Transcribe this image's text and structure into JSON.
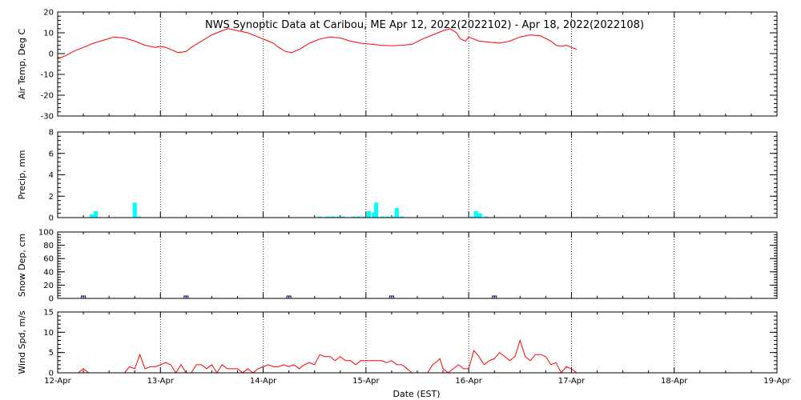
{
  "chart_data": {
    "type": "multi-panel",
    "title": "NWS Synoptic Data at Caribou, ME   Apr 12, 2022(2022102) - Apr 18, 2022(2022108)",
    "xlabel": "Date (EST)",
    "x_ticks": [
      "12-Apr",
      "13-Apr",
      "14-Apr",
      "15-Apr",
      "16-Apr",
      "17-Apr",
      "18-Apr",
      "19-Apr"
    ],
    "x_range_days": [
      0,
      7
    ],
    "grid": "vertical dotted at each day",
    "panels": [
      {
        "id": "temp",
        "type": "line",
        "ylabel": "Air Temp, Deg C",
        "ylim": [
          -30,
          20
        ],
        "yticks": [
          -30,
          -20,
          -10,
          0,
          10,
          20
        ],
        "color": "#ff0000",
        "points": [
          [
            0.0,
            -2.5
          ],
          [
            0.08,
            -1
          ],
          [
            0.15,
            1
          ],
          [
            0.25,
            3
          ],
          [
            0.35,
            5
          ],
          [
            0.45,
            6.5
          ],
          [
            0.55,
            8
          ],
          [
            0.65,
            7.5
          ],
          [
            0.75,
            6
          ],
          [
            0.85,
            4
          ],
          [
            0.95,
            3
          ],
          [
            1.0,
            3.5
          ],
          [
            1.05,
            3
          ],
          [
            1.1,
            2
          ],
          [
            1.17,
            0.5
          ],
          [
            1.25,
            1
          ],
          [
            1.3,
            3
          ],
          [
            1.4,
            6
          ],
          [
            1.5,
            9
          ],
          [
            1.6,
            11
          ],
          [
            1.66,
            12
          ],
          [
            1.75,
            11
          ],
          [
            1.85,
            10
          ],
          [
            1.95,
            8
          ],
          [
            2.05,
            6
          ],
          [
            2.1,
            5
          ],
          [
            2.15,
            3
          ],
          [
            2.22,
            1
          ],
          [
            2.28,
            0.5
          ],
          [
            2.35,
            2
          ],
          [
            2.45,
            5
          ],
          [
            2.55,
            7
          ],
          [
            2.65,
            8
          ],
          [
            2.75,
            7.5
          ],
          [
            2.85,
            6
          ],
          [
            2.95,
            5
          ],
          [
            3.05,
            4.5
          ],
          [
            3.15,
            4
          ],
          [
            3.25,
            3.8
          ],
          [
            3.35,
            4
          ],
          [
            3.45,
            4.5
          ],
          [
            3.55,
            7
          ],
          [
            3.65,
            9
          ],
          [
            3.75,
            11
          ],
          [
            3.82,
            12
          ],
          [
            3.88,
            10
          ],
          [
            3.92,
            7
          ],
          [
            3.97,
            6
          ],
          [
            4.0,
            8
          ],
          [
            4.05,
            7
          ],
          [
            4.1,
            6
          ],
          [
            4.2,
            5.5
          ],
          [
            4.3,
            5
          ],
          [
            4.4,
            6
          ],
          [
            4.5,
            8
          ],
          [
            4.6,
            9
          ],
          [
            4.7,
            8.5
          ],
          [
            4.8,
            6
          ],
          [
            4.85,
            4
          ],
          [
            4.9,
            3.5
          ],
          [
            4.95,
            4
          ],
          [
            5.0,
            3
          ],
          [
            5.05,
            2
          ]
        ]
      },
      {
        "id": "precip",
        "type": "bar",
        "ylabel": "Precip, mm",
        "ylim": [
          0,
          8
        ],
        "yticks": [
          0,
          2,
          4,
          6,
          8
        ],
        "color": "#00ffff",
        "bar_width_days": 0.04,
        "bars": [
          [
            0.33,
            0.3
          ],
          [
            0.37,
            0.6
          ],
          [
            0.75,
            1.4
          ],
          [
            0.79,
            0.1
          ],
          [
            2.55,
            0.1
          ],
          [
            2.63,
            0.1
          ],
          [
            2.68,
            0.1
          ],
          [
            2.73,
            0.1
          ],
          [
            2.78,
            0.1
          ],
          [
            2.88,
            0.1
          ],
          [
            2.93,
            0.1
          ],
          [
            2.98,
            0.1
          ],
          [
            3.03,
            0.6
          ],
          [
            3.08,
            0.5
          ],
          [
            3.1,
            1.4
          ],
          [
            3.16,
            0.1
          ],
          [
            3.21,
            0.1
          ],
          [
            3.26,
            0.1
          ],
          [
            3.3,
            0.9
          ],
          [
            3.35,
            0.1
          ],
          [
            4.02,
            0.1
          ],
          [
            4.07,
            0.6
          ],
          [
            4.11,
            0.4
          ],
          [
            4.17,
            0.1
          ]
        ]
      },
      {
        "id": "snow",
        "type": "scatter",
        "ylabel": "Snow Dep, cm",
        "ylim": [
          0,
          100
        ],
        "yticks": [
          0,
          20,
          40,
          60,
          80,
          100
        ],
        "color": "#000080",
        "points": [
          [
            0.25,
            0
          ],
          [
            1.25,
            0
          ],
          [
            2.25,
            0
          ],
          [
            3.25,
            0
          ],
          [
            4.25,
            0
          ]
        ]
      },
      {
        "id": "wind",
        "type": "line",
        "ylabel": "Wind Spd, m/s",
        "ylim": [
          0,
          15
        ],
        "yticks": [
          0,
          5,
          10,
          15
        ],
        "color": "#ff0000",
        "points": [
          [
            0.0,
            0
          ],
          [
            0.2,
            0
          ],
          [
            0.25,
            1
          ],
          [
            0.3,
            0
          ],
          [
            0.65,
            0
          ],
          [
            0.7,
            1.5
          ],
          [
            0.75,
            1
          ],
          [
            0.8,
            4.5
          ],
          [
            0.85,
            1
          ],
          [
            0.9,
            1.5
          ],
          [
            0.95,
            1.5
          ],
          [
            1.0,
            2
          ],
          [
            1.05,
            2.5
          ],
          [
            1.1,
            2
          ],
          [
            1.15,
            0
          ],
          [
            1.2,
            2
          ],
          [
            1.25,
            0
          ],
          [
            1.3,
            0
          ],
          [
            1.35,
            2
          ],
          [
            1.4,
            2
          ],
          [
            1.45,
            1
          ],
          [
            1.5,
            2
          ],
          [
            1.55,
            0
          ],
          [
            1.6,
            2
          ],
          [
            1.65,
            1
          ],
          [
            1.7,
            1
          ],
          [
            1.75,
            1
          ],
          [
            1.8,
            0
          ],
          [
            1.85,
            1
          ],
          [
            1.9,
            0
          ],
          [
            1.95,
            1
          ],
          [
            2.0,
            1.5
          ],
          [
            2.05,
            2
          ],
          [
            2.1,
            1.5
          ],
          [
            2.15,
            1.5
          ],
          [
            2.2,
            2
          ],
          [
            2.25,
            1.5
          ],
          [
            2.3,
            2
          ],
          [
            2.35,
            1
          ],
          [
            2.4,
            2
          ],
          [
            2.45,
            2.5
          ],
          [
            2.5,
            2
          ],
          [
            2.55,
            4.5
          ],
          [
            2.6,
            4
          ],
          [
            2.65,
            4
          ],
          [
            2.7,
            3
          ],
          [
            2.75,
            4
          ],
          [
            2.8,
            3
          ],
          [
            2.85,
            3
          ],
          [
            2.9,
            2
          ],
          [
            2.95,
            3
          ],
          [
            3.0,
            3
          ],
          [
            3.05,
            3
          ],
          [
            3.1,
            3
          ],
          [
            3.15,
            3
          ],
          [
            3.2,
            2.5
          ],
          [
            3.25,
            3
          ],
          [
            3.3,
            2
          ],
          [
            3.35,
            2
          ],
          [
            3.4,
            1
          ],
          [
            3.45,
            0
          ],
          [
            3.6,
            0
          ],
          [
            3.65,
            2
          ],
          [
            3.7,
            3
          ],
          [
            3.72,
            3.5
          ],
          [
            3.75,
            1
          ],
          [
            3.8,
            0
          ],
          [
            3.9,
            2
          ],
          [
            3.95,
            1
          ],
          [
            4.0,
            1
          ],
          [
            4.05,
            5.5
          ],
          [
            4.1,
            4
          ],
          [
            4.15,
            2
          ],
          [
            4.2,
            3
          ],
          [
            4.25,
            3.5
          ],
          [
            4.3,
            5
          ],
          [
            4.35,
            4
          ],
          [
            4.4,
            3
          ],
          [
            4.45,
            4
          ],
          [
            4.5,
            8
          ],
          [
            4.55,
            4
          ],
          [
            4.6,
            3
          ],
          [
            4.65,
            4.5
          ],
          [
            4.7,
            4.5
          ],
          [
            4.75,
            4
          ],
          [
            4.8,
            2
          ],
          [
            4.85,
            2.5
          ],
          [
            4.9,
            0
          ],
          [
            4.95,
            1.5
          ],
          [
            5.0,
            1
          ],
          [
            5.05,
            0
          ]
        ]
      }
    ]
  }
}
